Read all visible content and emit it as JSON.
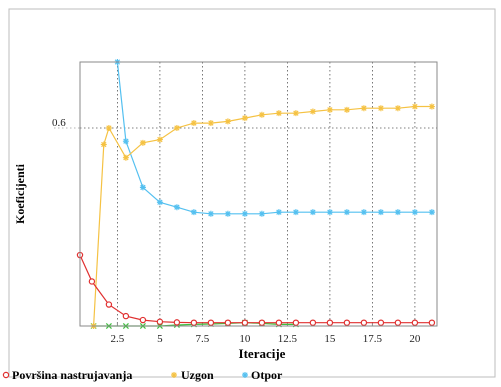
{
  "chart_data": {
    "type": "line",
    "title": "",
    "xlabel": "Iteracije",
    "ylabel": "Koeficijenti",
    "xlim": [
      0.3,
      21.3
    ],
    "ylim": [
      0.0,
      0.8
    ],
    "x_ticks": [
      2.5,
      5,
      7.5,
      10,
      12.5,
      15,
      17.5,
      20
    ],
    "x_tick_labels": [
      "2.5",
      "5",
      "7.5",
      "10",
      "12.5",
      "15",
      "17.5",
      "20"
    ],
    "y_ticks": [
      0.6
    ],
    "y_tick_labels": [
      "0.6"
    ],
    "grid": true,
    "legend_position": "bottom",
    "series": [
      {
        "name": "Površina nastrujavanja",
        "color": "#e03030",
        "marker": "circle",
        "x": [
          0.3,
          1,
          2,
          3,
          4,
          5,
          6,
          7,
          8,
          9,
          10,
          11,
          12,
          13,
          14,
          15,
          16,
          17,
          18,
          19,
          20,
          21
        ],
        "y": [
          0.215,
          0.135,
          0.065,
          0.03,
          0.018,
          0.013,
          0.011,
          0.01,
          0.01,
          0.01,
          0.01,
          0.01,
          0.01,
          0.01,
          0.01,
          0.01,
          0.01,
          0.01,
          0.01,
          0.01,
          0.01,
          0.01
        ]
      },
      {
        "name": "Uzgon",
        "color": "#f5c243",
        "marker": "star",
        "x": [
          1.1,
          1.7,
          2.0,
          3.0,
          4.0,
          5.0,
          6.0,
          7.0,
          8.0,
          9.0,
          10.0,
          11.0,
          12.0,
          13.0,
          14.0,
          15.0,
          16.0,
          17.0,
          18.0,
          19.0,
          20.0,
          21.0
        ],
        "y": [
          0.0,
          0.55,
          0.6,
          0.51,
          0.555,
          0.565,
          0.6,
          0.615,
          0.615,
          0.62,
          0.63,
          0.64,
          0.645,
          0.645,
          0.65,
          0.655,
          0.655,
          0.66,
          0.66,
          0.66,
          0.665,
          0.665
        ]
      },
      {
        "name": "Otpor",
        "color": "#54c0f0",
        "marker": "star",
        "x": [
          2.5,
          3,
          4,
          5,
          6,
          7,
          8,
          9,
          10,
          11,
          12,
          13,
          14,
          15,
          16,
          17,
          18,
          19,
          20,
          21
        ],
        "y": [
          0.8,
          0.56,
          0.42,
          0.375,
          0.36,
          0.345,
          0.34,
          0.34,
          0.34,
          0.34,
          0.345,
          0.345,
          0.345,
          0.345,
          0.345,
          0.345,
          0.345,
          0.345,
          0.345,
          0.345
        ]
      },
      {
        "name": "",
        "color": "#3fbf3f",
        "marker": "x",
        "x": [
          1.1,
          2,
          3,
          4,
          5,
          6,
          7,
          8,
          9,
          10,
          11,
          12,
          13
        ],
        "y": [
          0.0,
          0.0,
          0.0,
          0.0,
          0.0,
          0.003,
          0.005,
          0.006,
          0.008,
          0.01,
          0.008,
          0.005,
          0.005
        ]
      }
    ]
  }
}
